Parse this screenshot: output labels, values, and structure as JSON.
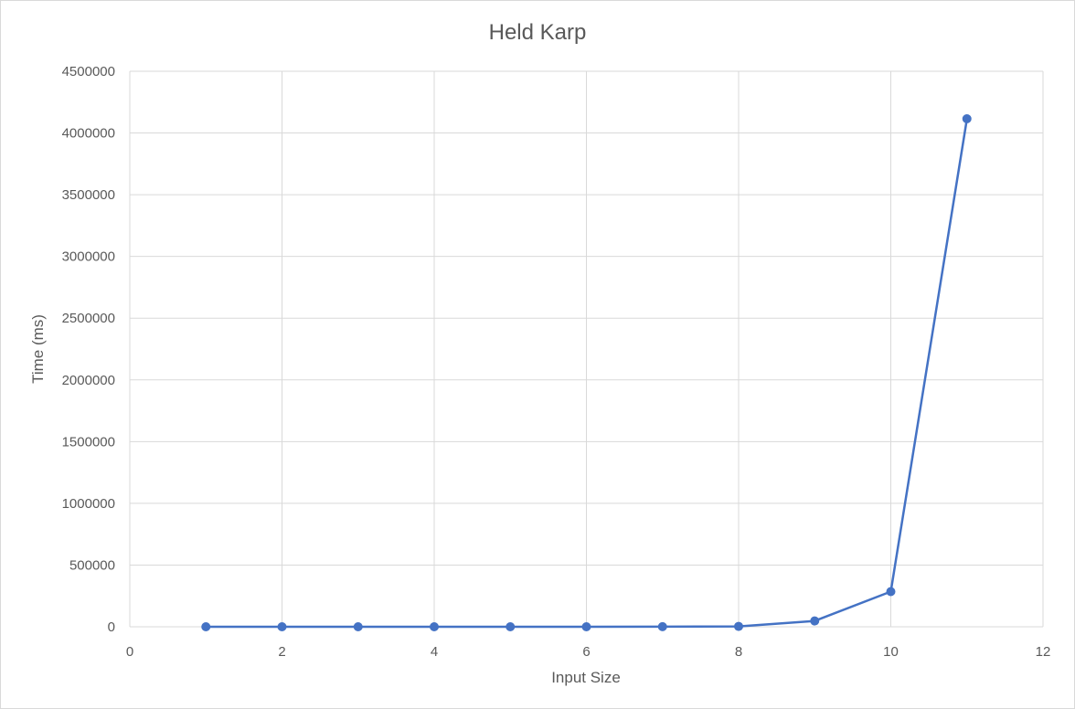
{
  "chart_data": {
    "type": "scatter",
    "title": "Held Karp",
    "xlabel": "Input Size",
    "ylabel": "Time (ms)",
    "xlim": [
      0,
      12
    ],
    "ylim": [
      0,
      4500000
    ],
    "x_ticks": [
      "0",
      "2",
      "4",
      "6",
      "8",
      "10",
      "12"
    ],
    "y_ticks": [
      "0",
      "500000",
      "1000000",
      "1500000",
      "2000000",
      "2500000",
      "3000000",
      "3500000",
      "4000000",
      "4500000"
    ],
    "grid": true,
    "legend": "none",
    "line_style": "straight lines with markers",
    "series": [
      {
        "color": "#4472c4",
        "x": [
          1,
          2,
          3,
          4,
          5,
          6,
          7,
          8,
          9,
          10,
          11
        ],
        "y": [
          0,
          0,
          0,
          0,
          0,
          10,
          900,
          3000,
          47000,
          285000,
          4115000
        ]
      }
    ]
  }
}
